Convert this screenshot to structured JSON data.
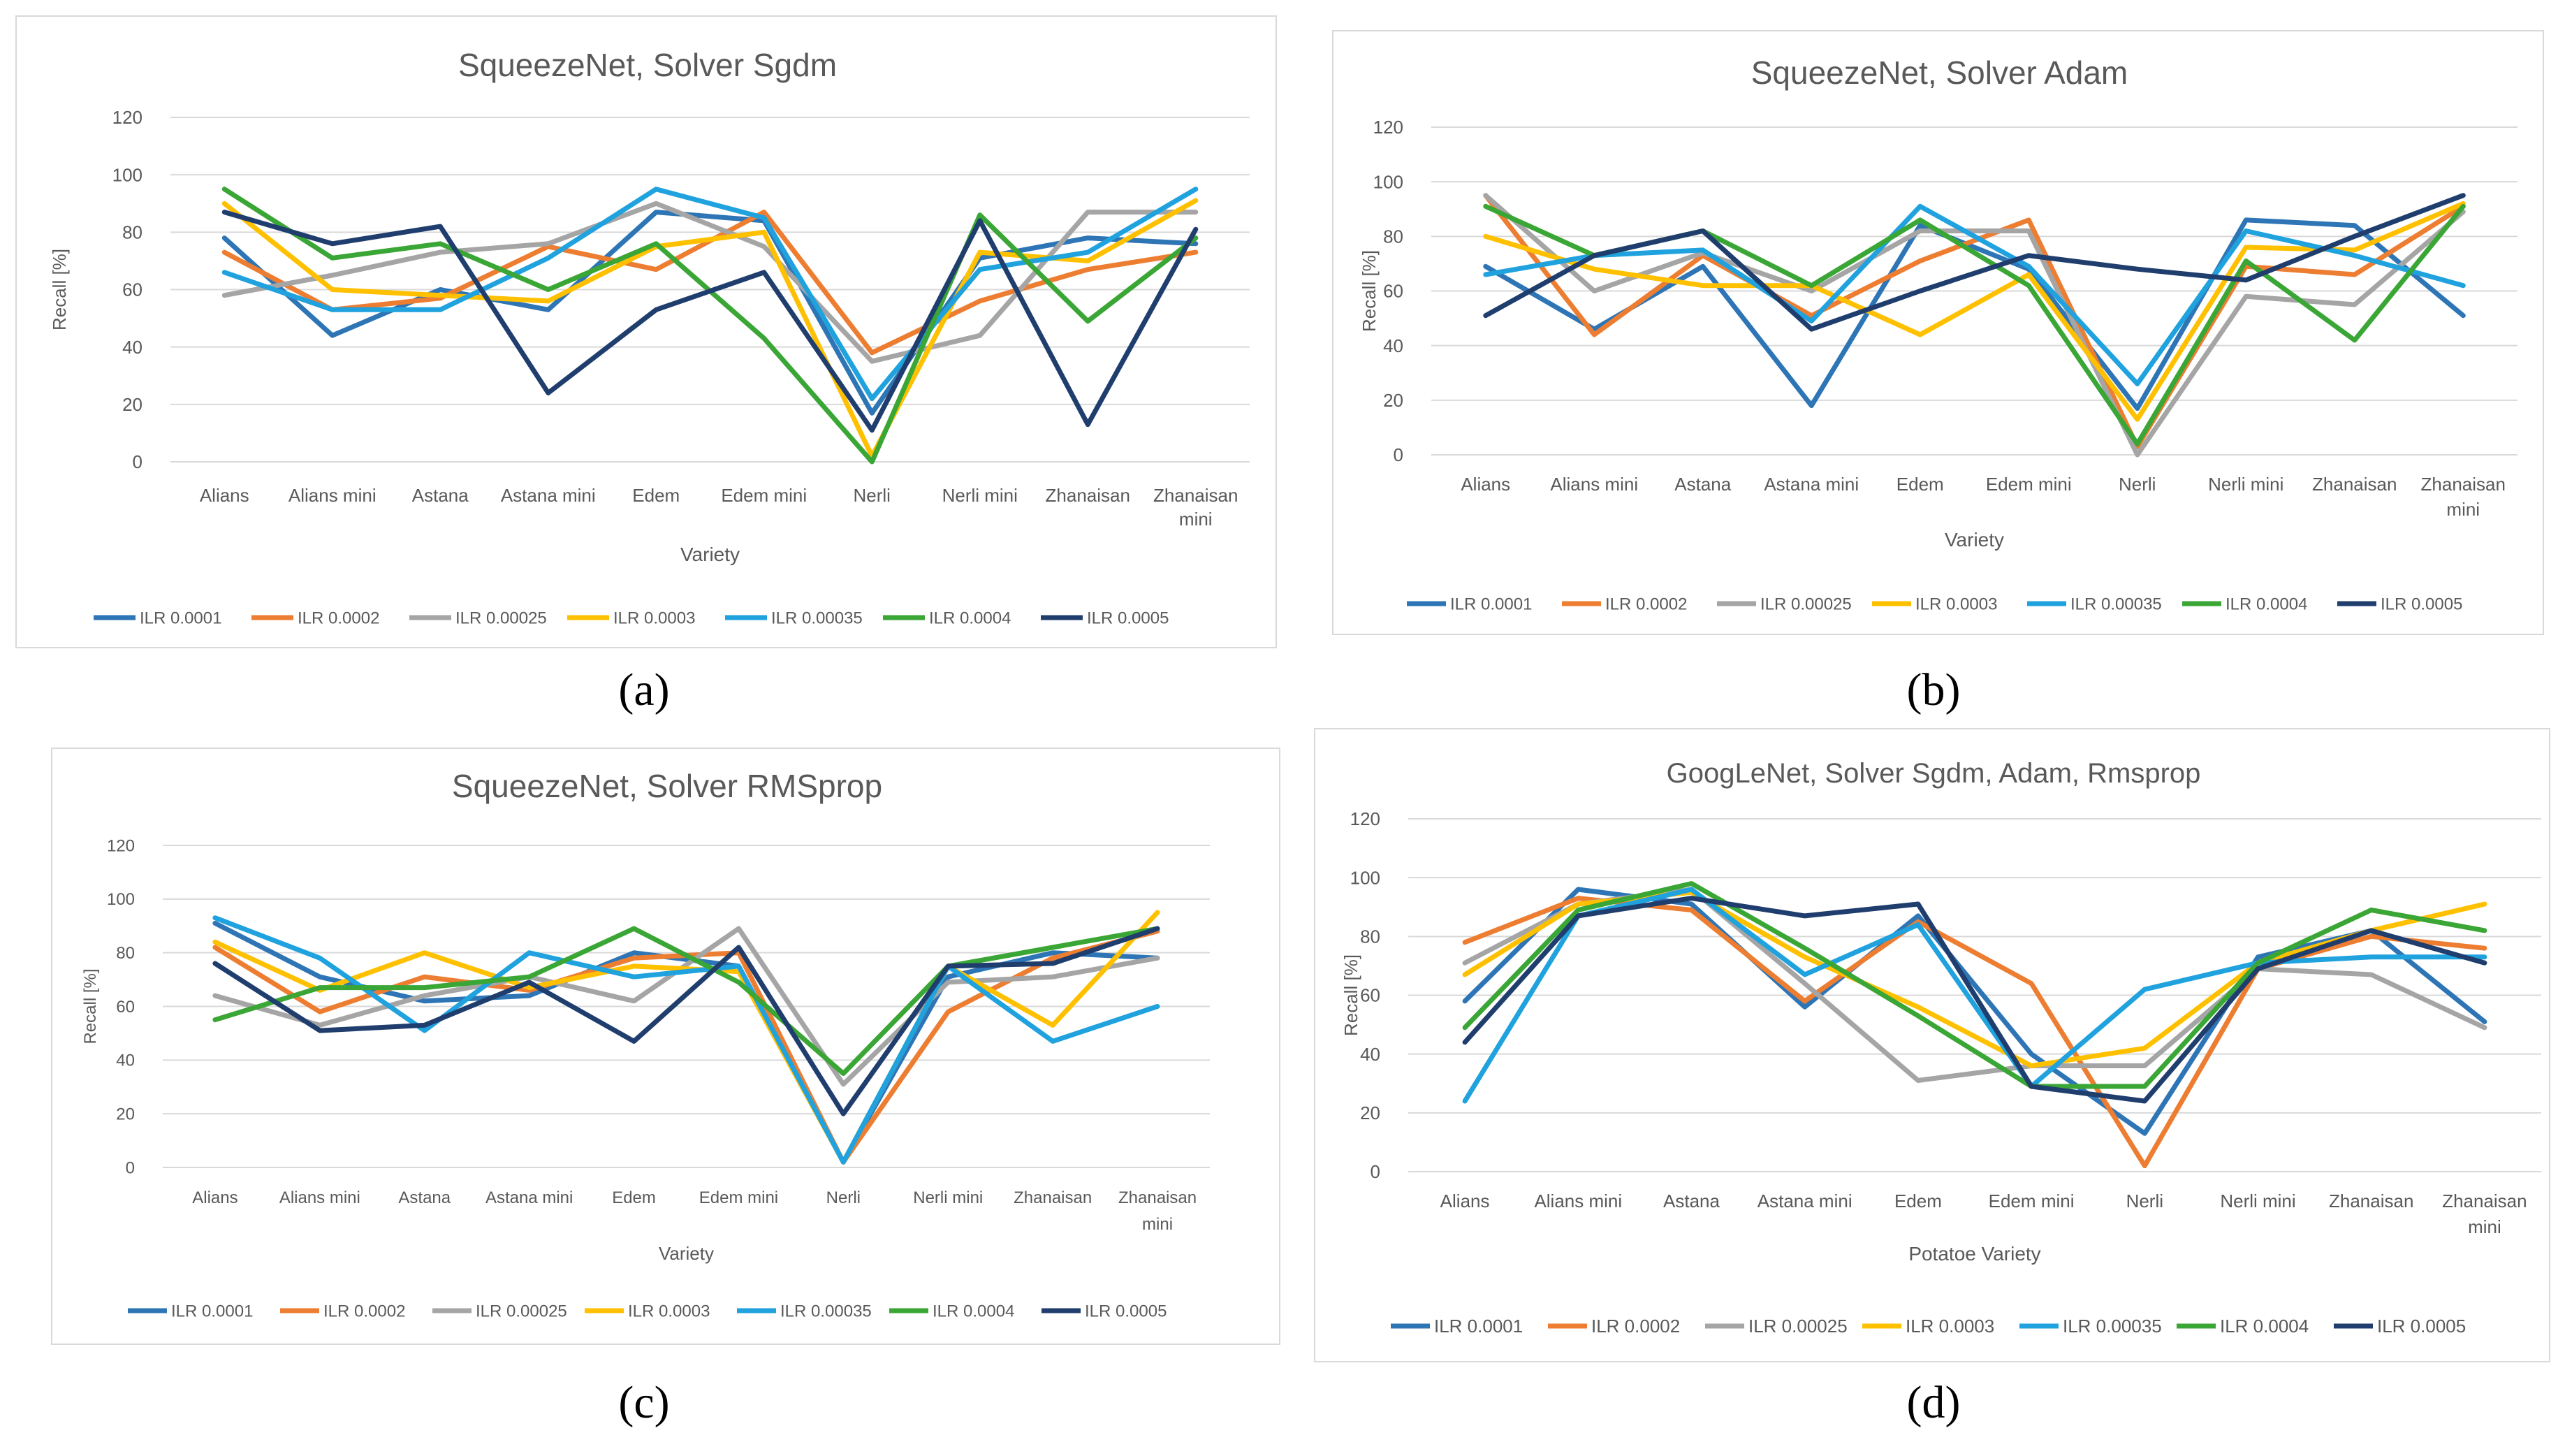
{
  "panel_labels": [
    "(a)",
    "(b)",
    "(c)",
    "(d)"
  ],
  "chart_data": [
    {
      "type": "line",
      "title": "SqueezeNet, Solver Sgdm",
      "xlabel": "Variety",
      "ylabel": "Recall [%]",
      "ylim": [
        0,
        120
      ],
      "yticks": [
        "0",
        "20",
        "40",
        "60",
        "80",
        "100",
        "120"
      ],
      "categories": [
        "Alians",
        "Alians mini",
        "Astana",
        "Astana mini",
        "Edem",
        "Edem mini",
        "Nerli",
        "Nerli mini",
        "Zhanaisan",
        "Zhanaisan mini"
      ],
      "legend_position": "bottom",
      "series": [
        {
          "name": "ILR 0.0001",
          "color": "#2e75b6",
          "values": [
            78,
            44,
            60,
            53,
            87,
            84,
            17,
            71,
            78,
            76
          ]
        },
        {
          "name": "ILR 0.0002",
          "color": "#ed7d31",
          "values": [
            73,
            53,
            57,
            75,
            67,
            87,
            38,
            56,
            67,
            73
          ]
        },
        {
          "name": "ILR 0.00025",
          "color": "#a5a5a5",
          "values": [
            58,
            65,
            73,
            76,
            90,
            75,
            35,
            44,
            87,
            87
          ]
        },
        {
          "name": "ILR 0.0003",
          "color": "#ffc000",
          "values": [
            90,
            60,
            58,
            56,
            75,
            80,
            2,
            73,
            70,
            91
          ]
        },
        {
          "name": "ILR 0.00035",
          "color": "#1fa2de",
          "values": [
            66,
            53,
            53,
            71,
            95,
            85,
            22,
            67,
            73,
            95
          ]
        },
        {
          "name": "ILR 0.0004",
          "color": "#3aa635",
          "values": [
            95,
            71,
            76,
            60,
            76,
            43,
            0,
            86,
            49,
            78
          ]
        },
        {
          "name": "ILR 0.0005",
          "color": "#1f3e6e",
          "values": [
            87,
            76,
            82,
            24,
            53,
            66,
            11,
            84,
            13,
            81
          ]
        }
      ]
    },
    {
      "type": "line",
      "title": "SqueezeNet, Solver Adam",
      "xlabel": "Variety",
      "ylabel": "Recall [%]",
      "ylim": [
        0,
        120
      ],
      "yticks": [
        "0",
        "20",
        "40",
        "60",
        "80",
        "100",
        "120"
      ],
      "categories": [
        "Alians",
        "Alians mini",
        "Astana",
        "Astana mini",
        "Edem",
        "Edem mini",
        "Nerli",
        "Nerli mini",
        "Zhanaisan",
        "Zhanaisan mini"
      ],
      "legend_position": "bottom",
      "series": [
        {
          "name": "ILR 0.0001",
          "color": "#2e75b6",
          "values": [
            69,
            46,
            69,
            18,
            84,
            68,
            17,
            86,
            84,
            51
          ]
        },
        {
          "name": "ILR 0.0002",
          "color": "#ed7d31",
          "values": [
            95,
            44,
            73,
            51,
            71,
            86,
            3,
            69,
            66,
            91
          ]
        },
        {
          "name": "ILR 0.00025",
          "color": "#a5a5a5",
          "values": [
            95,
            60,
            74,
            60,
            82,
            82,
            0,
            58,
            55,
            89
          ]
        },
        {
          "name": "ILR 0.0003",
          "color": "#ffc000",
          "values": [
            80,
            68,
            62,
            62,
            44,
            66,
            13,
            76,
            75,
            92
          ]
        },
        {
          "name": "ILR 0.00035",
          "color": "#1fa2de",
          "values": [
            66,
            73,
            75,
            49,
            91,
            69,
            26,
            82,
            73,
            62
          ]
        },
        {
          "name": "ILR 0.0004",
          "color": "#3aa635",
          "values": [
            91,
            73,
            82,
            62,
            86,
            62,
            4,
            71,
            42,
            91
          ]
        },
        {
          "name": "ILR 0.0005",
          "color": "#1f3e6e",
          "values": [
            51,
            73,
            82,
            46,
            60,
            73,
            68,
            64,
            80,
            95
          ]
        }
      ]
    },
    {
      "type": "line",
      "title": "SqueezeNet, Solver RMSprop",
      "xlabel": "Variety",
      "ylabel": "Recall [%]",
      "ylim": [
        0,
        120
      ],
      "yticks": [
        "0",
        "20",
        "40",
        "60",
        "80",
        "100",
        "120"
      ],
      "categories": [
        "Alians",
        "Alians mini",
        "Astana",
        "Astana mini",
        "Edem",
        "Edem mini",
        "Nerli",
        "Nerli mini",
        "Zhanaisan",
        "Zhanaisan mini"
      ],
      "legend_position": "bottom",
      "series": [
        {
          "name": "ILR 0.0001",
          "color": "#2e75b6",
          "values": [
            91,
            71,
            62,
            64,
            80,
            75,
            2,
            71,
            80,
            78
          ]
        },
        {
          "name": "ILR 0.0002",
          "color": "#ed7d31",
          "values": [
            82,
            58,
            71,
            66,
            78,
            80,
            2,
            58,
            78,
            88
          ]
        },
        {
          "name": "ILR 0.00025",
          "color": "#a5a5a5",
          "values": [
            64,
            53,
            64,
            71,
            62,
            89,
            31,
            69,
            71,
            78
          ]
        },
        {
          "name": "ILR 0.0003",
          "color": "#ffc000",
          "values": [
            84,
            66,
            80,
            67,
            75,
            73,
            2,
            75,
            53,
            95
          ]
        },
        {
          "name": "ILR 0.00035",
          "color": "#1fa2de",
          "values": [
            93,
            78,
            51,
            80,
            71,
            75,
            2,
            75,
            47,
            60
          ]
        },
        {
          "name": "ILR 0.0004",
          "color": "#3aa635",
          "values": [
            55,
            67,
            67,
            71,
            89,
            69,
            35,
            75,
            82,
            89
          ]
        },
        {
          "name": "ILR 0.0005",
          "color": "#1f3e6e",
          "values": [
            76,
            51,
            53,
            69,
            47,
            82,
            20,
            75,
            76,
            89
          ]
        }
      ]
    },
    {
      "type": "line",
      "title": "GoogLeNet, Solver Sgdm, Adam, Rmsprop",
      "xlabel": "Potatoe Variety",
      "ylabel": "Recall [%]",
      "ylim": [
        0,
        120
      ],
      "yticks": [
        "0",
        "20",
        "40",
        "60",
        "80",
        "100",
        "120"
      ],
      "categories": [
        "Alians",
        "Alians mini",
        "Astana",
        "Astana mini",
        "Edem",
        "Edem mini",
        "Nerli",
        "Nerli mini",
        "Zhanaisan",
        "Zhanaisan mini"
      ],
      "legend_position": "bottom",
      "series": [
        {
          "name": "ILR 0.0001",
          "color": "#2e75b6",
          "values": [
            58,
            96,
            91,
            56,
            87,
            40,
            13,
            73,
            82,
            51
          ]
        },
        {
          "name": "ILR 0.0002",
          "color": "#ed7d31",
          "values": [
            78,
            93,
            89,
            58,
            85,
            64,
            2,
            69,
            80,
            76
          ]
        },
        {
          "name": "ILR 0.00025",
          "color": "#a5a5a5",
          "values": [
            71,
            91,
            96,
            64,
            31,
            36,
            36,
            69,
            67,
            49
          ]
        },
        {
          "name": "ILR 0.0003",
          "color": "#ffc000",
          "values": [
            67,
            91,
            95,
            73,
            56,
            36,
            42,
            71,
            82,
            91
          ]
        },
        {
          "name": "ILR 0.00035",
          "color": "#1fa2de",
          "values": [
            24,
            87,
            96,
            67,
            84,
            29,
            62,
            71,
            73,
            73
          ]
        },
        {
          "name": "ILR 0.0004",
          "color": "#3aa635",
          "values": [
            49,
            89,
            98,
            76,
            53,
            29,
            29,
            71,
            89,
            82
          ]
        },
        {
          "name": "ILR 0.0005",
          "color": "#1f3e6e",
          "values": [
            44,
            87,
            93,
            87,
            91,
            29,
            24,
            69,
            82,
            71
          ]
        }
      ]
    }
  ]
}
